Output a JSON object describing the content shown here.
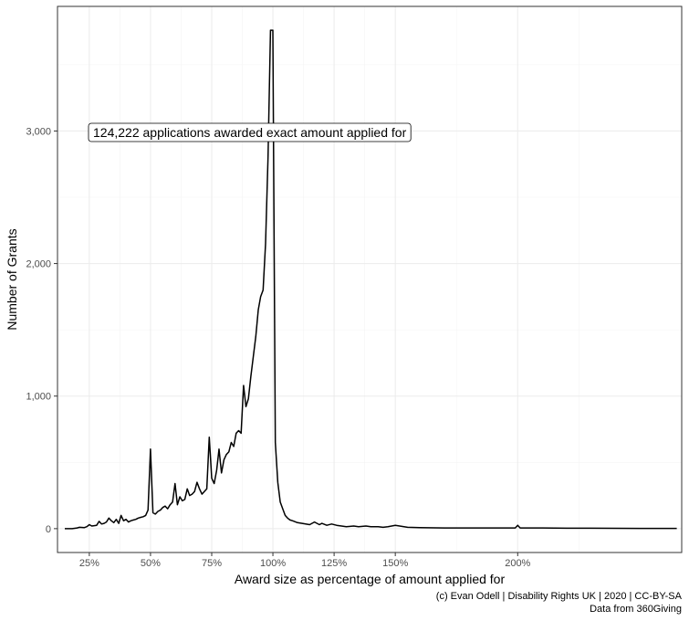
{
  "chart_data": {
    "type": "line",
    "xlabel": "Award size as percentage of amount applied for",
    "ylabel": "Number of Grants",
    "xlim": [
      0.12,
      2.67
    ],
    "ylim": [
      -180,
      3940
    ],
    "x_ticks": [
      0.25,
      0.5,
      0.75,
      1.0,
      1.25,
      1.5,
      2.0
    ],
    "x_tick_labels": [
      "25%",
      "50%",
      "75%",
      "100%",
      "125%",
      "150%",
      "200%"
    ],
    "y_ticks": [
      0,
      1000,
      2000,
      3000
    ],
    "y_tick_labels": [
      "0",
      "1,000",
      "2,000",
      "3,000"
    ],
    "grid": true,
    "legend": "none",
    "annotation": {
      "text": "124,222 applications awarded exact amount applied for",
      "x": 0.4,
      "y": 3000
    },
    "caption_lines": [
      "(c) Evan Odell | Disability Rights UK | 2020 | CC-BY-SA",
      "Data from 360Giving"
    ],
    "series": [
      {
        "x": [
          0.15,
          0.18,
          0.2,
          0.21,
          0.23,
          0.24,
          0.25,
          0.26,
          0.28,
          0.29,
          0.3,
          0.31,
          0.32,
          0.33,
          0.34,
          0.35,
          0.36,
          0.37,
          0.38,
          0.39,
          0.4,
          0.41,
          0.42,
          0.43,
          0.44,
          0.45,
          0.46,
          0.47,
          0.48,
          0.49,
          0.5,
          0.51,
          0.52,
          0.53,
          0.54,
          0.55,
          0.56,
          0.57,
          0.58,
          0.59,
          0.6,
          0.61,
          0.62,
          0.63,
          0.64,
          0.65,
          0.66,
          0.67,
          0.68,
          0.69,
          0.7,
          0.71,
          0.72,
          0.73,
          0.74,
          0.75,
          0.76,
          0.77,
          0.78,
          0.79,
          0.8,
          0.81,
          0.82,
          0.83,
          0.84,
          0.85,
          0.86,
          0.87,
          0.88,
          0.89,
          0.9,
          0.91,
          0.92,
          0.93,
          0.94,
          0.95,
          0.96,
          0.97,
          0.98,
          0.99,
          1.0,
          1.01,
          1.02,
          1.03,
          1.04,
          1.05,
          1.06,
          1.07,
          1.08,
          1.1,
          1.12,
          1.15,
          1.17,
          1.19,
          1.2,
          1.22,
          1.24,
          1.26,
          1.28,
          1.3,
          1.33,
          1.35,
          1.38,
          1.4,
          1.43,
          1.45,
          1.47,
          1.5,
          1.55,
          1.6,
          1.7,
          1.8,
          1.9,
          1.99,
          2.0,
          2.01,
          2.1,
          2.2,
          2.3,
          2.5,
          2.65
        ],
        "y": [
          0,
          0,
          5,
          10,
          8,
          15,
          30,
          20,
          25,
          55,
          35,
          40,
          50,
          80,
          60,
          45,
          70,
          40,
          100,
          60,
          70,
          50,
          60,
          65,
          70,
          80,
          85,
          90,
          100,
          140,
          600,
          120,
          110,
          130,
          140,
          160,
          170,
          150,
          180,
          200,
          340,
          180,
          240,
          210,
          220,
          300,
          250,
          260,
          280,
          350,
          300,
          260,
          280,
          300,
          690,
          380,
          340,
          440,
          600,
          420,
          520,
          560,
          580,
          650,
          620,
          720,
          740,
          720,
          1080,
          920,
          980,
          1150,
          1300,
          1450,
          1650,
          1750,
          1800,
          2150,
          2800,
          3760,
          3760,
          650,
          350,
          200,
          150,
          100,
          80,
          65,
          60,
          45,
          40,
          30,
          50,
          30,
          40,
          25,
          35,
          25,
          20,
          15,
          20,
          15,
          20,
          15,
          15,
          10,
          15,
          25,
          10,
          8,
          5,
          5,
          5,
          5,
          25,
          5,
          5,
          3,
          3,
          2,
          2
        ]
      }
    ]
  }
}
